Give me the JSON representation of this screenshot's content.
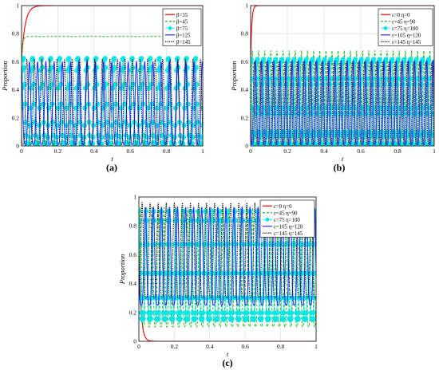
{
  "figure": {
    "panels": [
      {
        "label": "(a)"
      },
      {
        "label": "(b)"
      },
      {
        "label": "(c)"
      }
    ]
  },
  "chart_data": [
    {
      "type": "line",
      "panel": "(a)",
      "xlabel": "t",
      "ylabel": "Proportion",
      "xlim": [
        0,
        1
      ],
      "ylim": [
        0,
        1
      ],
      "xticks": [
        "0",
        "0.2",
        "0.4",
        "0.6",
        "0.8",
        "1"
      ],
      "yticks": [
        "0",
        "0.2",
        "0.4",
        "0.6",
        "0.8",
        "1"
      ],
      "grid": true,
      "legend_position": "top-right",
      "series": [
        {
          "name": "β=35",
          "color": "#ff0000",
          "style": "solid",
          "kind": "sat",
          "start": 0.62,
          "end": 1.0,
          "tau": 0.02
        },
        {
          "name": "β=45",
          "color": "#22bb22",
          "style": "dashed",
          "kind": "sat",
          "start": 0.62,
          "end": 0.78,
          "tau": 0.006
        },
        {
          "name": "β=75",
          "color": "#00e6e6",
          "style": "markers",
          "kind": "osc",
          "cycles": 20,
          "min": 0.0,
          "max": 0.63,
          "phase": 0.3
        },
        {
          "name": "β=125",
          "color": "#2030ff",
          "style": "solid",
          "kind": "osc",
          "cycles": 22,
          "min": 0.01,
          "max": 0.6,
          "phase": 0.55
        },
        {
          "name": "β=145",
          "color": "#000000",
          "style": "dotted",
          "kind": "osc",
          "cycles": 24,
          "min": 0.01,
          "max": 0.62,
          "phase": 0.8
        }
      ]
    },
    {
      "type": "line",
      "panel": "(b)",
      "xlabel": "t",
      "ylabel": "Proportion",
      "xlim": [
        0,
        1
      ],
      "ylim": [
        0,
        1
      ],
      "xticks": [
        "0",
        "0.2",
        "0.4",
        "0.6",
        "0.8",
        "1"
      ],
      "yticks": [
        "0",
        "0.2",
        "0.4",
        "0.6",
        "0.8",
        "1"
      ],
      "grid": true,
      "legend_position": "top-right",
      "series": [
        {
          "name": "ε=0 η=0",
          "color": "#ff0000",
          "style": "solid",
          "kind": "sat",
          "start": 0.6,
          "end": 1.0,
          "tau": 0.006
        },
        {
          "name": "ε=45 η=90",
          "color": "#22bb22",
          "style": "dashed",
          "kind": "osc",
          "cycles": 30,
          "min": 0.0,
          "max": 0.68,
          "phase": 0.2
        },
        {
          "name": "ε=75 η=100",
          "color": "#00e6e6",
          "style": "markers",
          "kind": "osc",
          "cycles": 30,
          "min": 0.0,
          "max": 0.63,
          "phase": 0.45
        },
        {
          "name": "ε=105 η=120",
          "color": "#2030ff",
          "style": "solid",
          "kind": "osc",
          "cycles": 30,
          "min": 0.01,
          "max": 0.61,
          "phase": 0.7
        },
        {
          "name": "ε=145 η=145",
          "color": "#000000",
          "style": "dotted",
          "kind": "osc",
          "cycles": 30,
          "min": 0.01,
          "max": 0.6,
          "phase": 0.9
        }
      ]
    },
    {
      "type": "line",
      "panel": "(c)",
      "xlabel": "t",
      "ylabel": "Proportion",
      "xlim": [
        0,
        1
      ],
      "ylim": [
        0,
        1
      ],
      "xticks": [
        "0",
        "0.2",
        "0.4",
        "0.6",
        "0.8",
        "1"
      ],
      "yticks": [
        "0",
        "0.2",
        "0.4",
        "0.6",
        "0.8",
        "1"
      ],
      "grid": true,
      "legend_position": "top-right",
      "series": [
        {
          "name": "ε=0 η=0",
          "color": "#ff0000",
          "style": "solid",
          "kind": "decay",
          "start": 0.6,
          "end": 0.0,
          "tau": 0.012
        },
        {
          "name": "ε=45 η=90",
          "color": "#22bb22",
          "style": "dashed",
          "kind": "osc",
          "cycles": 30,
          "min": 0.1,
          "max": 0.93,
          "phase": 0.25
        },
        {
          "name": "ε=75 η=100",
          "color": "#00e6e6",
          "style": "markers",
          "kind": "osc",
          "cycles": 24,
          "min": 0.15,
          "max": 0.9,
          "phase": 0.5
        },
        {
          "name": "ε=105 η=120",
          "color": "#2030ff",
          "style": "solid",
          "kind": "osc",
          "cycles": 22,
          "min": 0.25,
          "max": 0.93,
          "phase": 0.7
        },
        {
          "name": "ε=145 η=145",
          "color": "#000000",
          "style": "dotted",
          "kind": "osc",
          "cycles": 22,
          "min": 0.3,
          "max": 0.96,
          "phase": 0.1
        }
      ]
    }
  ]
}
